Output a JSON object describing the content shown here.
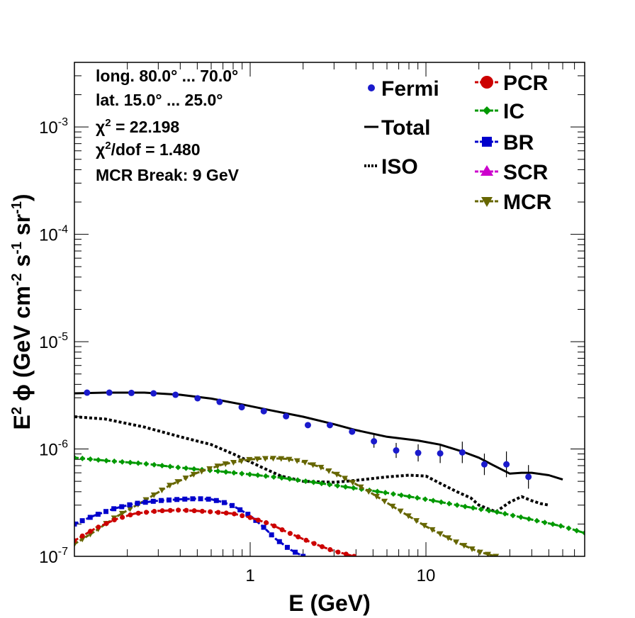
{
  "chart_data": {
    "type": "line",
    "xlabel_main": "E (GeV)",
    "ylabel_parts": {
      "e": "E",
      "esup": "2",
      "phi": "ϕ (GeV cm",
      "cm_sup": "-2",
      "s": " s",
      "s_sup": "-1",
      "sr": " sr",
      "sr_sup": "-1",
      "close": ")"
    },
    "x_scale": "log",
    "y_scale": "log",
    "xlim": [
      0.1,
      80
    ],
    "ylim": [
      1e-07,
      0.004
    ],
    "x_tick_labels": [
      {
        "v": 1,
        "t": "1"
      },
      {
        "v": 10,
        "t": "10"
      }
    ],
    "y_tick_labels": [
      {
        "v": 1e-07,
        "base": "10",
        "exp": "-7"
      },
      {
        "v": 1e-06,
        "base": "10",
        "exp": "-6"
      },
      {
        "v": 1e-05,
        "base": "10",
        "exp": "-5"
      },
      {
        "v": 0.0001,
        "base": "10",
        "exp": "-4"
      },
      {
        "v": 0.001,
        "base": "10",
        "exp": "-3"
      }
    ],
    "annotations": {
      "long": "long. 80.0° ... 70.0°",
      "lat": "lat. 15.0° ... 25.0°",
      "chi2": "χ",
      "chi2_sup": "2",
      "chi2_val": " = 22.198",
      "chidof": "χ",
      "chidof_sup": "2",
      "chidof_val": "/dof = 1.480",
      "mcr": "MCR Break:  9 GeV"
    },
    "legend": [
      {
        "name": "Fermi",
        "color": "#1a1acc"
      },
      {
        "name": "Total",
        "color": "#000000"
      },
      {
        "name": "ISO",
        "color": "#000000"
      },
      {
        "name": "PCR",
        "color": "#cc0000"
      },
      {
        "name": "IC",
        "color": "#009900"
      },
      {
        "name": "BR",
        "color": "#0000cc"
      },
      {
        "name": "SCR",
        "color": "#cc00cc"
      },
      {
        "name": "MCR",
        "color": "#666600"
      }
    ],
    "fermi": {
      "color": "#1a1acc",
      "points": [
        {
          "x": 0.118,
          "y": 3.35e-06,
          "e": 0
        },
        {
          "x": 0.158,
          "y": 3.35e-06,
          "e": 0
        },
        {
          "x": 0.211,
          "y": 3.33e-06,
          "e": 0
        },
        {
          "x": 0.282,
          "y": 3.3e-06,
          "e": 0
        },
        {
          "x": 0.376,
          "y": 3.2e-06,
          "e": 0
        },
        {
          "x": 0.502,
          "y": 2.97e-06,
          "e": 0
        },
        {
          "x": 0.67,
          "y": 2.75e-06,
          "e": 0
        },
        {
          "x": 0.895,
          "y": 2.45e-06,
          "e": 0
        },
        {
          "x": 1.195,
          "y": 2.25e-06,
          "e": 0
        },
        {
          "x": 1.6,
          "y": 2.02e-06,
          "e": 0
        },
        {
          "x": 2.13,
          "y": 1.67e-06,
          "e": 0
        },
        {
          "x": 2.84,
          "y": 1.67e-06,
          "e": 0
        },
        {
          "x": 3.8,
          "y": 1.45e-06,
          "e": 0
        },
        {
          "x": 5.06,
          "y": 1.18e-06,
          "e": 0.06
        },
        {
          "x": 6.77,
          "y": 9.7e-07,
          "e": 0.07
        },
        {
          "x": 9.03,
          "y": 9.2e-07,
          "e": 0.08
        },
        {
          "x": 12.05,
          "y": 9.1e-07,
          "e": 0.09
        },
        {
          "x": 16.1,
          "y": 9.3e-07,
          "e": 0.1
        },
        {
          "x": 21.5,
          "y": 7.2e-07,
          "e": 0.1
        },
        {
          "x": 28.7,
          "y": 7.2e-07,
          "e": 0.12
        },
        {
          "x": 38.3,
          "y": 5.5e-07,
          "e": 0.11
        }
      ]
    },
    "series": [
      {
        "name": "Total",
        "color": "#000000",
        "dash": "",
        "marker": "none",
        "width": 3,
        "x": [
          0.1,
          0.15,
          0.25,
          0.4,
          0.6,
          0.9,
          1.3,
          2.0,
          3.0,
          4.0,
          6.0,
          9.0,
          12.0,
          16.0,
          20.0,
          24.0,
          30.0,
          35.0,
          40.0,
          50.0,
          60.0
        ],
        "y": [
          3.3e-06,
          3.35e-06,
          3.35e-06,
          3.2e-06,
          2.95e-06,
          2.6e-06,
          2.3e-06,
          2e-06,
          1.7e-06,
          1.5e-06,
          1.3e-06,
          1.2e-06,
          1.1e-06,
          9.5e-07,
          8.3e-07,
          7.1e-07,
          5.9e-07,
          6e-07,
          6e-07,
          5.7e-07,
          5.2e-07
        ]
      },
      {
        "name": "ISO",
        "color": "#000000",
        "dash": "4,3",
        "marker": "none",
        "width": 4,
        "x": [
          0.1,
          0.15,
          0.25,
          0.4,
          0.6,
          0.8,
          1.0,
          1.2,
          1.5,
          2.0,
          3.0,
          4.0,
          6.0,
          8.0,
          10.0,
          12.0,
          15.0,
          18.0,
          20.0,
          25.0,
          30.0,
          35.0,
          40.0,
          45.0,
          50.0
        ],
        "y": [
          2e-06,
          1.9e-06,
          1.6e-06,
          1.3e-06,
          1.1e-06,
          9e-07,
          7.6e-07,
          6.6e-07,
          5.6e-07,
          5e-07,
          4.9e-07,
          5.1e-07,
          5.5e-07,
          5.7e-07,
          5.6e-07,
          4.8e-07,
          4e-07,
          3.5e-07,
          3e-07,
          2.6e-07,
          3.2e-07,
          3.6e-07,
          3.3e-07,
          3.1e-07,
          3e-07
        ]
      },
      {
        "name": "IC",
        "color": "#009900",
        "dash": "6,3",
        "marker": "diamond",
        "width": 3,
        "x": [
          0.1,
          0.15,
          0.25,
          0.4,
          0.6,
          1.0,
          1.5,
          2.5,
          4.0,
          6.0,
          10.0,
          15.0,
          25.0,
          40.0,
          60.0,
          80.0
        ],
        "y": [
          8.3e-07,
          7.8e-07,
          7.3e-07,
          6.7e-07,
          6.3e-07,
          5.8e-07,
          5.4e-07,
          4.8e-07,
          4.3e-07,
          3.9e-07,
          3.4e-07,
          3e-07,
          2.6e-07,
          2.2e-07,
          1.9e-07,
          1.65e-07
        ]
      },
      {
        "name": "MCR",
        "color": "#666600",
        "dash": "6,3",
        "marker": "triangle-down",
        "width": 3,
        "x": [
          0.1,
          0.13,
          0.17,
          0.25,
          0.35,
          0.5,
          0.7,
          1.0,
          1.3,
          1.6,
          2.0,
          2.5,
          3.2,
          4.0,
          5.0,
          7.0,
          10.0,
          15.0,
          20.0,
          25.0
        ],
        "y": [
          1.3e-07,
          1.7e-07,
          2.3e-07,
          3.3e-07,
          4.6e-07,
          6e-07,
          7.2e-07,
          8e-07,
          8.2e-07,
          8.1e-07,
          7.6e-07,
          6.8e-07,
          5.7e-07,
          4.7e-07,
          3.8e-07,
          2.7e-07,
          1.9e-07,
          1.35e-07,
          1.1e-07,
          1e-07
        ]
      },
      {
        "name": "BR",
        "color": "#0000cc",
        "dash": "6,3",
        "marker": "square",
        "width": 3,
        "x": [
          0.1,
          0.13,
          0.17,
          0.22,
          0.3,
          0.4,
          0.5,
          0.6,
          0.7,
          0.8,
          1.0,
          1.2,
          1.4,
          1.7,
          2.0
        ],
        "y": [
          2e-07,
          2.4e-07,
          2.8e-07,
          3.1e-07,
          3.3e-07,
          3.4e-07,
          3.45e-07,
          3.4e-07,
          3.2e-07,
          2.95e-07,
          2.4e-07,
          1.85e-07,
          1.45e-07,
          1.15e-07,
          1e-07
        ]
      },
      {
        "name": "PCR",
        "color": "#cc0000",
        "dash": "6,3",
        "marker": "circle",
        "width": 3,
        "x": [
          0.1,
          0.13,
          0.17,
          0.22,
          0.3,
          0.4,
          0.5,
          0.6,
          0.8,
          1.0,
          1.3,
          1.6,
          2.0,
          2.5,
          3.0,
          3.5,
          3.9
        ],
        "y": [
          1.4e-07,
          1.8e-07,
          2.2e-07,
          2.5e-07,
          2.65e-07,
          2.7e-07,
          2.65e-07,
          2.6e-07,
          2.5e-07,
          2.3e-07,
          2e-07,
          1.7e-07,
          1.45e-07,
          1.25e-07,
          1.12e-07,
          1.05e-07,
          1e-07
        ]
      }
    ]
  }
}
